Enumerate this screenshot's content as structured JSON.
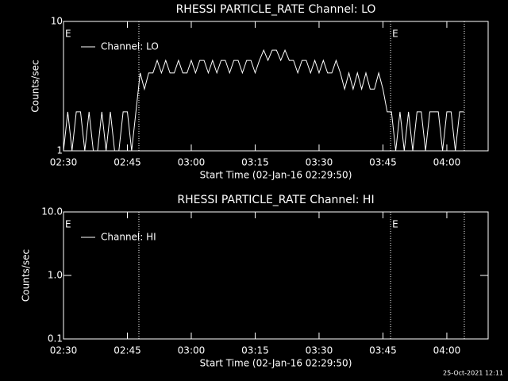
{
  "chart_data": [
    {
      "type": "line",
      "title": "RHESSI PARTICLE_RATE Channel: LO",
      "xlabel": "Start Time (02-Jan-16 02:29:50)",
      "ylabel": "Counts/sec",
      "log_y": true,
      "legend": "upper-left",
      "xlim": [
        "02:30",
        "04:09:42"
      ],
      "ylim": [
        1,
        10
      ],
      "xticks": [
        "02:30",
        "02:45",
        "03:00",
        "03:15",
        "03:30",
        "03:45",
        "04:00"
      ],
      "yticks": [
        1,
        10
      ],
      "vlines": [
        "02:47:42",
        "03:46:48",
        "04:04:06"
      ],
      "annotations": [
        {
          "text": "E",
          "x": "02:30"
        },
        {
          "text": "E",
          "x": "03:46:48"
        }
      ],
      "x": [
        "02:30",
        "02:31",
        "02:32",
        "02:33",
        "02:34",
        "02:35",
        "02:36",
        "02:37",
        "02:38",
        "02:39",
        "02:40",
        "02:41",
        "02:42",
        "02:43",
        "02:44",
        "02:45",
        "02:46",
        "02:47",
        "02:48",
        "02:49",
        "02:50",
        "02:51",
        "02:52",
        "02:53",
        "02:54",
        "02:55",
        "02:56",
        "02:57",
        "02:58",
        "02:59",
        "03:00",
        "03:01",
        "03:02",
        "03:03",
        "03:04",
        "03:05",
        "03:06",
        "03:07",
        "03:08",
        "03:09",
        "03:10",
        "03:11",
        "03:12",
        "03:13",
        "03:14",
        "03:15",
        "03:16",
        "03:17",
        "03:18",
        "03:19",
        "03:20",
        "03:21",
        "03:22",
        "03:23",
        "03:24",
        "03:25",
        "03:26",
        "03:27",
        "03:28",
        "03:29",
        "03:30",
        "03:31",
        "03:32",
        "03:33",
        "03:34",
        "03:35",
        "03:36",
        "03:37",
        "03:38",
        "03:39",
        "03:40",
        "03:41",
        "03:42",
        "03:43",
        "03:44",
        "03:45",
        "03:46",
        "03:47",
        "03:48",
        "03:49",
        "03:50",
        "03:51",
        "03:52",
        "03:53",
        "03:54",
        "03:55",
        "03:56",
        "03:57",
        "03:58",
        "03:59",
        "04:00",
        "04:01",
        "04:02",
        "04:03",
        "04:04"
      ],
      "series": [
        {
          "name": "Channel: LO",
          "color": "#ffffff",
          "values": [
            1,
            2,
            1,
            2,
            2,
            1,
            2,
            1,
            1,
            2,
            1,
            2,
            1,
            1,
            2,
            2,
            1,
            2,
            4,
            3,
            4,
            4,
            5,
            4,
            5,
            4,
            4,
            5,
            4,
            4,
            5,
            4,
            5,
            5,
            4,
            5,
            4,
            5,
            5,
            4,
            5,
            5,
            4,
            5,
            5,
            4,
            5,
            6,
            5,
            6,
            6,
            5,
            6,
            5,
            5,
            4,
            5,
            5,
            4,
            5,
            4,
            5,
            4,
            4,
            5,
            4,
            3,
            4,
            3,
            4,
            3,
            4,
            3,
            3,
            4,
            3,
            2,
            2,
            1,
            2,
            1,
            2,
            1,
            2,
            2,
            1,
            2,
            2,
            2,
            1,
            2,
            2,
            1,
            2,
            2
          ]
        }
      ]
    },
    {
      "type": "line",
      "title": "RHESSI PARTICLE_RATE Channel: HI",
      "xlabel": "Start Time (02-Jan-16 02:29:50)",
      "ylabel": "Counts/sec",
      "log_y": true,
      "legend": "upper-left",
      "xlim": [
        "02:30",
        "04:09:42"
      ],
      "ylim": [
        0.1,
        10
      ],
      "xticks": [
        "02:30",
        "02:45",
        "03:00",
        "03:15",
        "03:30",
        "03:45",
        "04:00"
      ],
      "yticks": [
        0.1,
        {
          "value": 1,
          "label": "1.0"
        },
        {
          "value": 10,
          "label": "10.0"
        }
      ],
      "vlines": [
        "02:47:42",
        "03:46:48",
        "04:04:06"
      ],
      "annotations": [
        {
          "text": "E",
          "x": "02:30"
        },
        {
          "text": "E",
          "x": "03:46:48"
        }
      ],
      "x": [],
      "series": [
        {
          "name": "Channel: HI",
          "color": "#ffffff",
          "values": []
        }
      ]
    }
  ],
  "footer": "25-Oct-2021 12:11"
}
